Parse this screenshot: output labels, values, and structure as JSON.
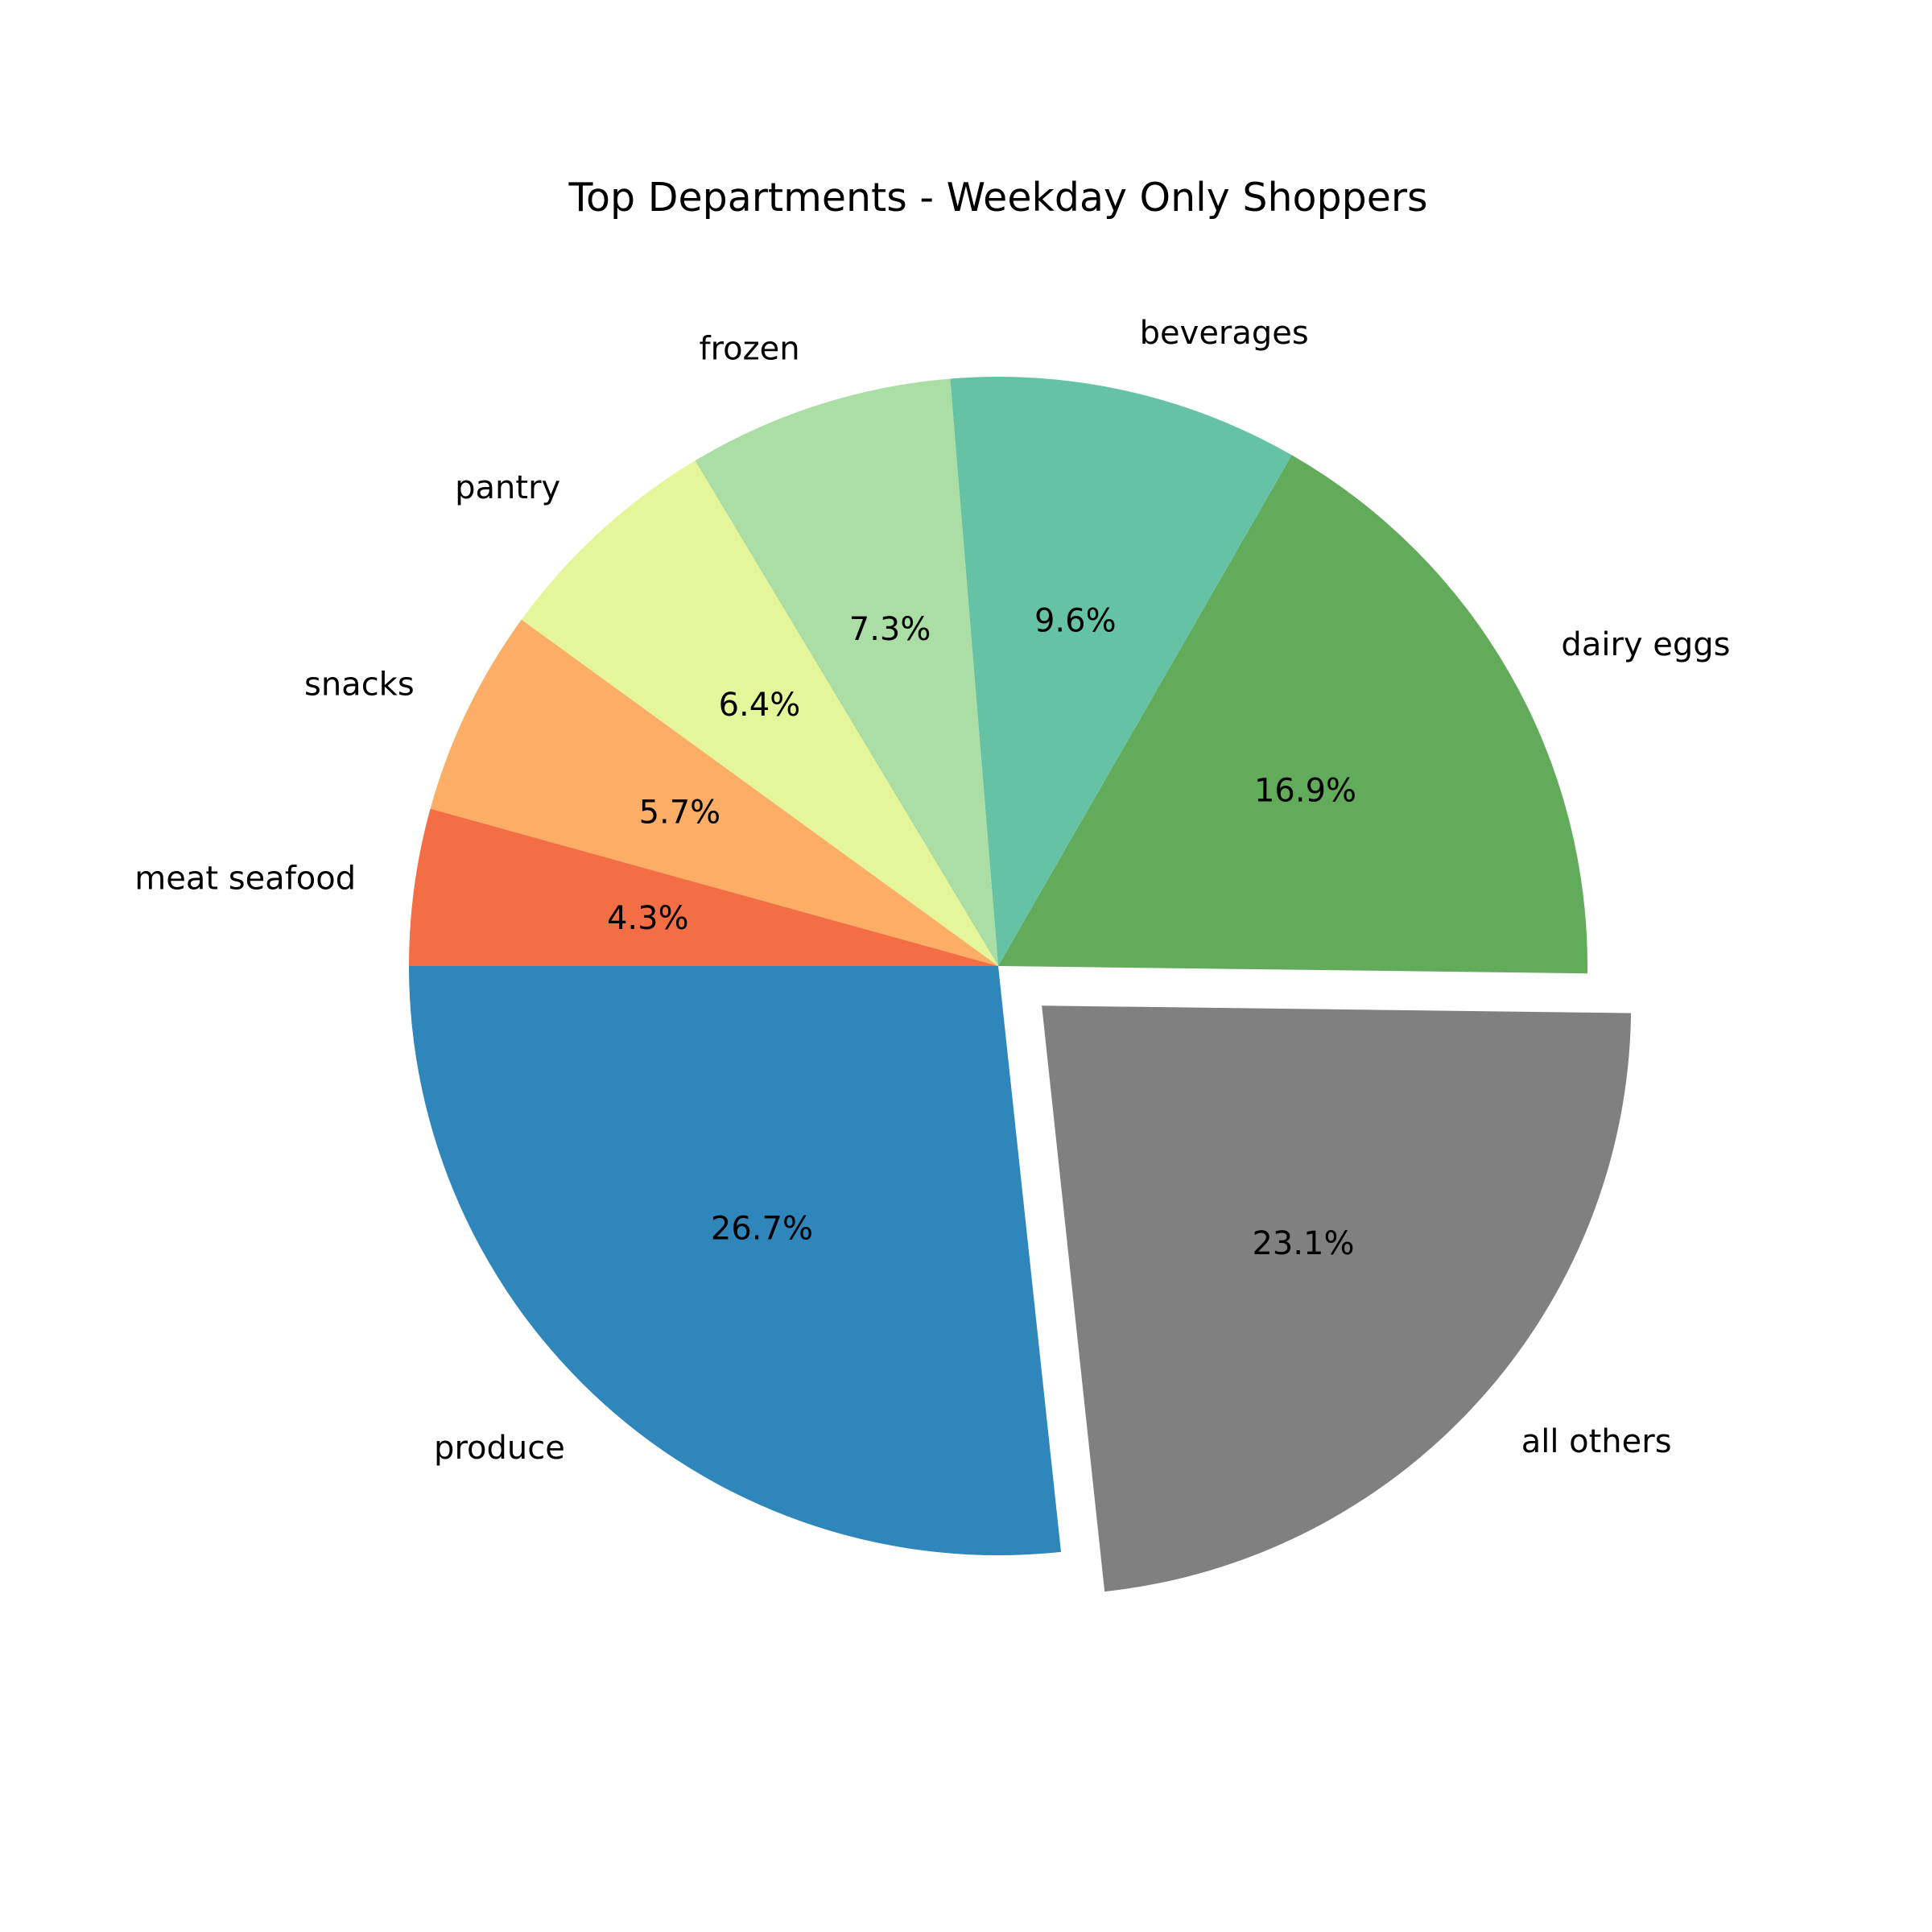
{
  "chart_data": {
    "type": "pie",
    "title": "Top Departments - Weekday Only Shoppers",
    "start_angle_deg": 180,
    "direction": "counterclockwise",
    "slices": [
      {
        "label": "produce",
        "value": 26.7,
        "pct_label": "26.7%",
        "color": "#2e86bb",
        "exploded": false
      },
      {
        "label": "all others",
        "value": 23.1,
        "pct_label": "23.1%",
        "color": "#808080",
        "exploded": true
      },
      {
        "label": "dairy eggs",
        "value": 16.9,
        "pct_label": "16.9%",
        "color": "#61ab5a",
        "exploded": false
      },
      {
        "label": "beverages",
        "value": 9.6,
        "pct_label": "9.6%",
        "color": "#65c2a5",
        "exploded": false
      },
      {
        "label": "frozen",
        "value": 7.3,
        "pct_label": "7.3%",
        "color": "#aadea4",
        "exploded": false
      },
      {
        "label": "pantry",
        "value": 6.4,
        "pct_label": "6.4%",
        "color": "#e5f59a",
        "exploded": false
      },
      {
        "label": "snacks",
        "value": 5.7,
        "pct_label": "5.7%",
        "color": "#fdae66",
        "exploded": false
      },
      {
        "label": "meat seafood",
        "value": 4.3,
        "pct_label": "4.3%",
        "color": "#f46e45",
        "exploded": false
      }
    ]
  }
}
